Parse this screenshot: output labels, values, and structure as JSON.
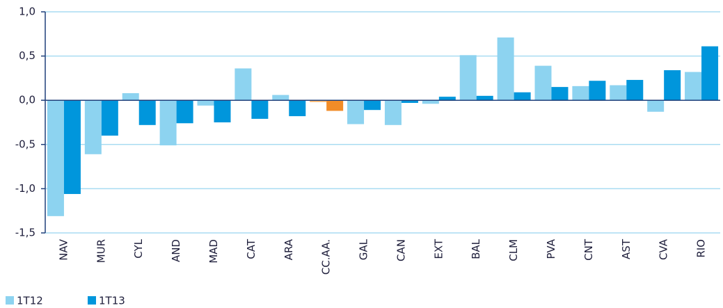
{
  "chart_data": {
    "type": "bar",
    "categories": [
      "NAV",
      "MUR",
      "CYL",
      "AND",
      "MAD",
      "CAT",
      "ARA",
      "CC.AA.",
      "GAL",
      "CAN",
      "EXT",
      "BAL",
      "CLM",
      "PVA",
      "CNT",
      "AST",
      "CVA",
      "RIO"
    ],
    "series": [
      {
        "name": "1T12",
        "color": "#8dd3f0",
        "colors": [
          "#8dd3f0",
          "#8dd3f0",
          "#8dd3f0",
          "#8dd3f0",
          "#8dd3f0",
          "#8dd3f0",
          "#8dd3f0",
          "#f9b56a",
          "#8dd3f0",
          "#8dd3f0",
          "#8dd3f0",
          "#8dd3f0",
          "#8dd3f0",
          "#8dd3f0",
          "#8dd3f0",
          "#8dd3f0",
          "#8dd3f0",
          "#8dd3f0"
        ],
        "values": [
          -1.31,
          -0.61,
          0.08,
          -0.51,
          -0.06,
          0.36,
          0.06,
          -0.02,
          -0.27,
          -0.28,
          -0.04,
          0.51,
          0.71,
          0.39,
          0.16,
          0.17,
          -0.13,
          0.32
        ]
      },
      {
        "name": "1T13",
        "color": "#0096dc",
        "colors": [
          "#0096dc",
          "#0096dc",
          "#0096dc",
          "#0096dc",
          "#0096dc",
          "#0096dc",
          "#0096dc",
          "#f28c28",
          "#0096dc",
          "#0096dc",
          "#0096dc",
          "#0096dc",
          "#0096dc",
          "#0096dc",
          "#0096dc",
          "#0096dc",
          "#0096dc",
          "#0096dc"
        ],
        "values": [
          -1.06,
          -0.4,
          -0.28,
          -0.26,
          -0.25,
          -0.21,
          -0.18,
          -0.12,
          -0.11,
          -0.03,
          0.04,
          0.05,
          0.09,
          0.15,
          0.22,
          0.23,
          0.34,
          0.61
        ]
      }
    ],
    "ylim": [
      -1.5,
      1.0
    ],
    "yticks": [
      {
        "value": -1.5,
        "label": "-1,5"
      },
      {
        "value": -1.0,
        "label": "-1,0"
      },
      {
        "value": -0.5,
        "label": "-0,5"
      },
      {
        "value": 0,
        "label": "0,0"
      },
      {
        "value": 0.5,
        "label": "0,5"
      },
      {
        "value": 1.0,
        "label": "1,0"
      }
    ],
    "grid": true
  }
}
